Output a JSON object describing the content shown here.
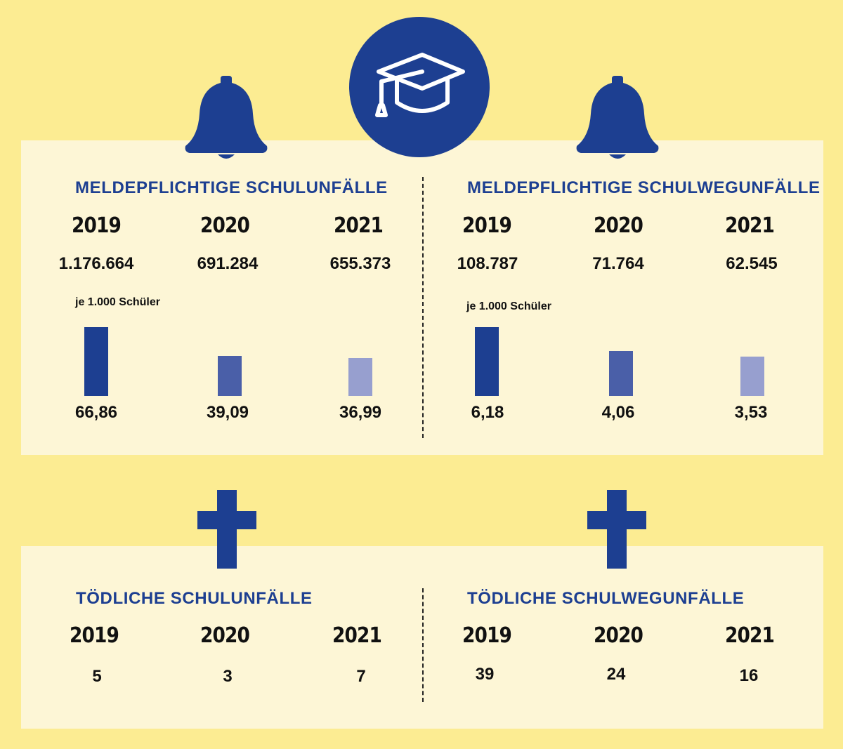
{
  "colors": {
    "background": "#fcec92",
    "panel": "#fdf6d6",
    "accent": "#1d3f91",
    "bar_2019": "#1d3f91",
    "bar_2020": "#4a5fa8",
    "bar_2021": "#979fcf"
  },
  "icons": {
    "top_center": "graduation-cap-icon",
    "top_left": "bell-icon",
    "top_right": "bell-icon",
    "bottom_left": "cross-icon",
    "bottom_right": "cross-icon"
  },
  "chart_data": [
    {
      "type": "table",
      "title": "MELDEPFLICHTIGE SCHULUNFÄLLE",
      "categories": [
        "2019",
        "2020",
        "2021"
      ],
      "values": [
        "1.176.664",
        "691.284",
        "655.373"
      ]
    },
    {
      "type": "bar",
      "title": "je 1.000 Schüler",
      "categories": [
        "2019",
        "2020",
        "2021"
      ],
      "values": [
        66.86,
        39.09,
        36.99
      ],
      "labels": [
        "66,86",
        "39,09",
        "36,99"
      ]
    },
    {
      "type": "table",
      "title": "MELDEPFLICHTIGE SCHULWEGUNFÄLLE",
      "categories": [
        "2019",
        "2020",
        "2021"
      ],
      "values": [
        "108.787",
        "71.764",
        "62.545"
      ]
    },
    {
      "type": "bar",
      "title": "je 1.000 Schüler",
      "categories": [
        "2019",
        "2020",
        "2021"
      ],
      "values": [
        6.18,
        4.06,
        3.53
      ],
      "labels": [
        "6,18",
        "4,06",
        "3,53"
      ]
    },
    {
      "type": "table",
      "title": "TÖDLICHE SCHULUNFÄLLE",
      "categories": [
        "2019",
        "2020",
        "2021"
      ],
      "values": [
        5,
        3,
        7
      ]
    },
    {
      "type": "table",
      "title": "TÖDLICHE SCHULWEGUNFÄLLE",
      "categories": [
        "2019",
        "2020",
        "2021"
      ],
      "values": [
        39,
        24,
        16
      ]
    }
  ]
}
